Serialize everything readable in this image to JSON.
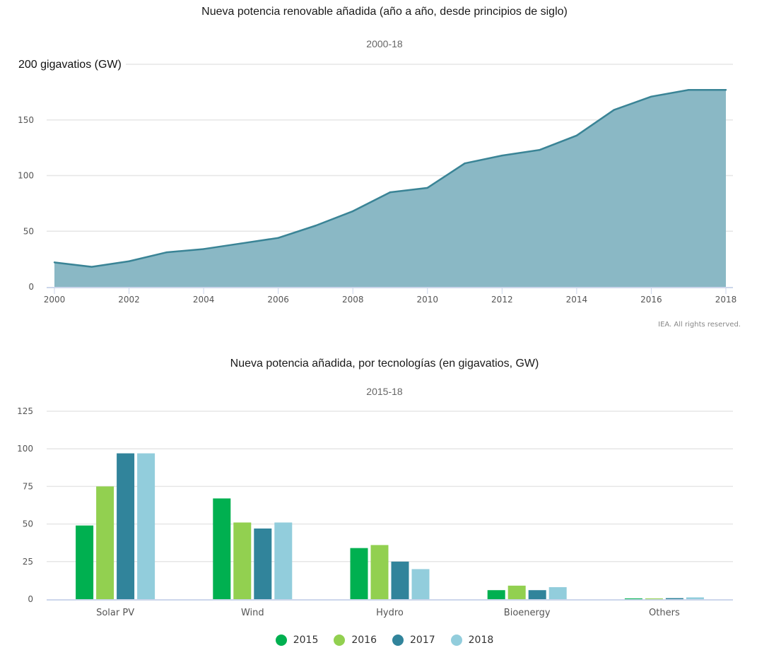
{
  "colors": {
    "area_fill": "#8ab8c5",
    "area_line": "#3a8496",
    "grid": "#e6e6e6",
    "axis": "#ccd6eb"
  },
  "chart_data": [
    {
      "type": "area",
      "title": "Nueva potencia renovable añadida (año a año, desde principios de siglo)",
      "subtitle": "2000-18",
      "ylabel": "200 gigavatios (GW)",
      "xlabel": "",
      "ylim": [
        0,
        200
      ],
      "yticks": [
        "0",
        "50",
        "100",
        "150"
      ],
      "xticks": [
        "2000",
        "2002",
        "2004",
        "2006",
        "2008",
        "2010",
        "2012",
        "2014",
        "2016",
        "2018"
      ],
      "grid": true,
      "x": [
        2000,
        2001,
        2002,
        2003,
        2004,
        2005,
        2006,
        2007,
        2008,
        2009,
        2010,
        2011,
        2012,
        2013,
        2014,
        2015,
        2016,
        2017,
        2018
      ],
      "values": [
        22,
        18,
        23,
        31,
        34,
        39,
        44,
        55,
        68,
        85,
        89,
        111,
        118,
        123,
        136,
        159,
        171,
        177,
        177
      ],
      "credit": "IEA. All rights reserved."
    },
    {
      "type": "bar",
      "title": "Nueva potencia añadida, por tecnologías (en gigavatios, GW)",
      "subtitle": "2015-18",
      "xlabel": "",
      "ylabel": "",
      "ylim": [
        0,
        125
      ],
      "yticks": [
        "0",
        "25",
        "50",
        "75",
        "100",
        "125"
      ],
      "grid": true,
      "legend_position": "bottom-center",
      "categories": [
        "Solar PV",
        "Wind",
        "Hydro",
        "Bioenergy",
        "Others"
      ],
      "series": [
        {
          "name": "2015",
          "color": "#00b050",
          "values": [
            49,
            67,
            34,
            6,
            0.5
          ]
        },
        {
          "name": "2016",
          "color": "#92d050",
          "values": [
            75,
            51,
            36,
            9,
            0.5
          ]
        },
        {
          "name": "2017",
          "color": "#31849b",
          "values": [
            97,
            47,
            25,
            6,
            0.7
          ]
        },
        {
          "name": "2018",
          "color": "#92cddc",
          "values": [
            97,
            51,
            20,
            8,
            1.2
          ]
        }
      ]
    }
  ]
}
